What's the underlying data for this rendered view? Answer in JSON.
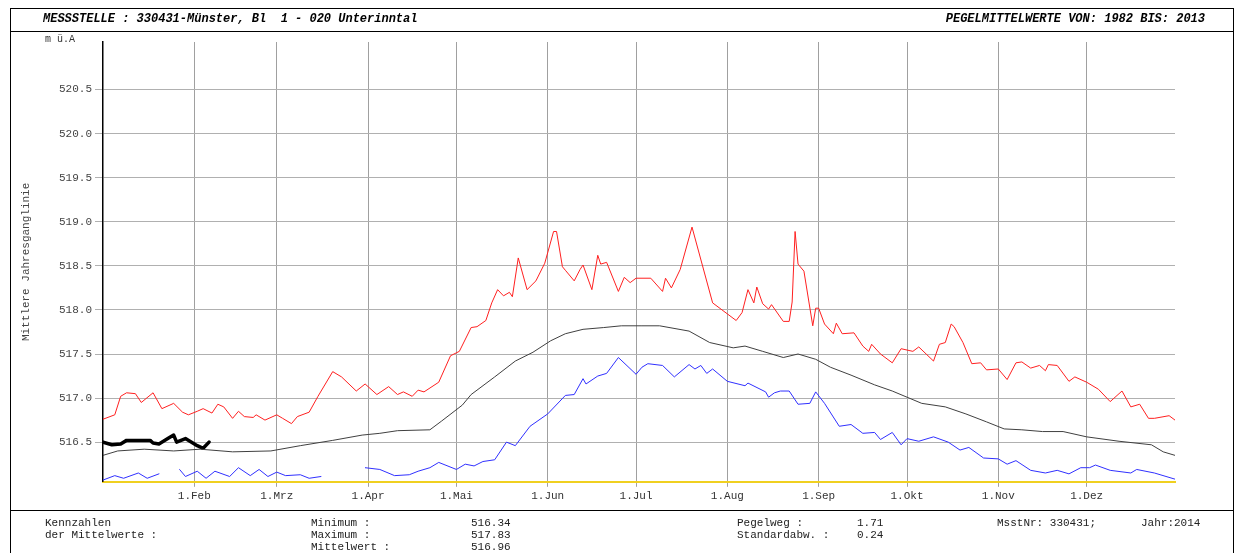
{
  "chart_data": {
    "type": "line",
    "title": "MESSSTELLE : 330431-Münster, Bl  1 - 020 Unterinntal",
    "subtitle": "PEGELMITTELWERTE VON: 1982 BIS: 2013",
    "ylabel": "Mittlere Jahresganglinie",
    "annotations": [
      "m ü.A",
      "Kennzahlen",
      "der Mittelwerte :",
      "Minimum :",
      "516.34",
      "Maximum :",
      "517.83",
      "Mittelwert :",
      "516.96",
      "Pegelweg :",
      "1.71",
      "Standardabw. :",
      "0.24",
      "MsstNr: 330431;",
      "Jahr:2014"
    ],
    "xlim": [
      "--01-01",
      "--12-31"
    ],
    "xticks": [
      {
        "value": "--02-01",
        "label": "1.Feb"
      },
      {
        "value": "--03-01",
        "label": "1.Mrz"
      },
      {
        "value": "--04-01",
        "label": "1.Apr"
      },
      {
        "value": "--05-01",
        "label": "1.Mai"
      },
      {
        "value": "--06-01",
        "label": "1.Jun"
      },
      {
        "value": "--07-01",
        "label": "1.Jul"
      },
      {
        "value": "--08-01",
        "label": "1.Aug"
      },
      {
        "value": "--09-01",
        "label": "1.Sep"
      },
      {
        "value": "--10-01",
        "label": "1.Okt"
      },
      {
        "value": "--11-01",
        "label": "1.Nov"
      },
      {
        "value": "--12-01",
        "label": "1.Dez"
      }
    ],
    "ylim": [
      516.05,
      521.04
    ],
    "yticks": [
      516.5,
      {
        "value": 517,
        "label": "517.0"
      },
      517.5,
      {
        "value": 518,
        "label": "518.0"
      },
      518.5,
      {
        "value": 519,
        "label": "519.0"
      },
      519.5,
      {
        "value": 520,
        "label": "520.0"
      },
      520.5
    ],
    "grid": true,
    "legend": false,
    "marker": "none",
    "line_style": "solid",
    "series": [
      {
        "color": "#ff2020",
        "x": [
          "--01-01",
          "--01-05",
          "--01-07",
          "--01-09",
          "--01-12",
          "--01-14",
          "--01-18",
          "--01-21",
          "--01-25",
          "--01-28",
          "--01-30",
          "--02-02",
          "--02-04",
          "--02-07",
          "--02-09",
          "--02-11",
          "--02-14",
          "--02-16",
          "--02-18",
          "--02-21",
          "--02-22",
          "--02-25",
          "--03-01",
          "--03-03",
          "--03-06",
          "--03-08",
          "--03-12",
          "--03-15",
          "--03-20",
          "--03-23",
          "--03-28",
          "--03-31",
          "--04-04",
          "--04-08",
          "--04-11",
          "--04-13",
          "--04-16",
          "--04-18",
          "--04-20",
          "--04-25",
          "--04-29",
          "--05-02",
          "--05-06",
          "--05-08",
          "--05-11",
          "--05-13",
          "--05-15",
          "--05-17",
          "--05-19",
          "--05-20",
          "--05-22",
          "--05-25",
          "--05-28",
          "--05-31",
          "--06-03",
          "--06-04",
          "--06-06",
          "--06-07",
          "--06-10",
          "--06-12",
          "--06-13",
          "--06-16",
          "--06-18",
          "--06-19",
          "--06-21",
          "--06-25",
          "--06-27",
          "--06-29",
          "--07-01",
          "--07-06",
          "--07-10",
          "--07-11",
          "--07-13",
          "--07-16",
          "--07-20",
          "--07-27",
          "--08-04",
          "--08-06",
          "--08-08",
          "--08-10",
          "--08-11",
          "--08-13",
          "--08-15",
          "--08-16",
          "--08-20",
          "--08-22",
          "--08-23",
          "--08-24",
          "--08-25",
          "--08-27",
          "--08-30",
          "--08-31",
          "--09-01",
          "--09-03",
          "--09-06",
          "--09-07",
          "--09-09",
          "--09-13",
          "--09-16",
          "--09-18",
          "--09-19",
          "--09-22",
          "--09-26",
          "--09-29",
          "--10-03",
          "--10-05",
          "--10-10",
          "--10-12",
          "--10-14",
          "--10-16",
          "--10-17",
          "--10-20",
          "--10-23",
          "--10-26",
          "--10-28",
          "--11-01",
          "--11-04",
          "--11-07",
          "--11-09",
          "--11-12",
          "--11-15",
          "--11-17",
          "--11-18",
          "--11-21",
          "--11-25",
          "--11-27",
          "--12-01",
          "--12-05",
          "--12-09",
          "--12-13",
          "--12-16",
          "--12-19",
          "--12-22",
          "--12-24",
          "--12-29",
          "--12-31"
        ],
        "values": [
          516.76,
          516.81,
          517.02,
          517.06,
          517.05,
          516.95,
          517.06,
          516.88,
          516.94,
          516.84,
          516.81,
          516.85,
          516.88,
          516.83,
          516.93,
          516.9,
          516.77,
          516.85,
          516.79,
          516.78,
          516.81,
          516.75,
          516.81,
          516.77,
          516.71,
          516.79,
          516.84,
          517.02,
          517.3,
          517.24,
          517.08,
          517.16,
          517.04,
          517.13,
          517.04,
          517.07,
          517.02,
          517.09,
          517.07,
          517.18,
          517.48,
          517.53,
          517.8,
          517.81,
          517.88,
          518.08,
          518.23,
          518.16,
          518.2,
          518.15,
          518.59,
          518.23,
          518.33,
          518.53,
          518.89,
          518.89,
          518.49,
          518.45,
          518.33,
          518.46,
          518.51,
          518.23,
          518.62,
          518.52,
          518.54,
          518.21,
          518.37,
          518.31,
          518.36,
          518.36,
          518.21,
          518.36,
          518.25,
          518.46,
          518.94,
          518.08,
          517.88,
          517.97,
          518.23,
          518.08,
          518.26,
          518.07,
          518.01,
          518.06,
          517.87,
          517.87,
          518.09,
          518.89,
          518.52,
          518.44,
          517.82,
          518.02,
          518.02,
          517.84,
          517.73,
          517.85,
          517.73,
          517.74,
          517.59,
          517.53,
          517.61,
          517.5,
          517.4,
          517.56,
          517.53,
          517.58,
          517.42,
          517.61,
          517.63,
          517.84,
          517.81,
          517.63,
          517.39,
          517.4,
          517.32,
          517.33,
          517.21,
          517.4,
          517.41,
          517.34,
          517.37,
          517.31,
          517.38,
          517.37,
          517.19,
          517.24,
          517.18,
          517.1,
          516.96,
          517.08,
          516.9,
          516.93,
          516.77,
          516.77,
          516.8,
          516.75
        ]
      },
      {
        "color": "#404040",
        "x": [
          "--01-01",
          "--01-06",
          "--01-15",
          "--01-25",
          "--02-03",
          "--02-14",
          "--02-27",
          "--03-09",
          "--03-20",
          "--03-30",
          "--04-05",
          "--04-11",
          "--04-22",
          "--04-26",
          "--05-03",
          "--05-06",
          "--05-14",
          "--05-21",
          "--05-27",
          "--06-02",
          "--06-07",
          "--06-13",
          "--06-20",
          "--06-26",
          "--07-03",
          "--07-09",
          "--07-19",
          "--07-26",
          "--08-03",
          "--08-07",
          "--08-13",
          "--08-20",
          "--08-25",
          "--08-31",
          "--09-05",
          "--09-12",
          "--09-20",
          "--09-26",
          "--10-01",
          "--10-06",
          "--10-14",
          "--10-21",
          "--10-28",
          "--11-03",
          "--11-09",
          "--11-16",
          "--11-23",
          "--12-01",
          "--12-12",
          "--12-23",
          "--12-27",
          "--12-31"
        ],
        "values": [
          516.35,
          516.4,
          516.42,
          516.4,
          516.42,
          516.39,
          516.4,
          516.46,
          516.52,
          516.58,
          516.6,
          516.63,
          516.64,
          516.74,
          516.92,
          517.04,
          517.24,
          517.42,
          517.52,
          517.65,
          517.73,
          517.78,
          517.8,
          517.82,
          517.82,
          517.82,
          517.76,
          517.63,
          517.57,
          517.59,
          517.53,
          517.46,
          517.5,
          517.44,
          517.35,
          517.26,
          517.15,
          517.08,
          517.01,
          516.94,
          516.9,
          516.82,
          516.73,
          516.65,
          516.64,
          516.62,
          516.62,
          516.56,
          516.51,
          516.47,
          516.39,
          516.35
        ]
      },
      {
        "color": "#3030ff",
        "x": [
          "--01-01",
          "--01-05",
          "--01-08",
          "--01-13",
          "--01-16",
          "--01-20",
          "--01-23",
          "--01-27",
          "--01-29",
          "--02-02",
          "--02-05",
          "--02-08",
          "--02-13",
          "--02-16",
          "--02-20",
          "--02-23",
          "--02-26",
          "--03-01",
          "--03-04",
          "--03-09",
          "--03-12",
          "--03-16",
          "--03-18",
          "--03-21",
          "--03-26",
          "--03-31",
          "--04-05",
          "--04-10",
          "--04-15",
          "--04-18",
          "--04-22",
          "--04-25",
          "--05-01",
          "--05-04",
          "--05-07",
          "--05-10",
          "--05-14",
          "--05-18",
          "--05-21",
          "--05-26",
          "--06-01",
          "--06-07",
          "--06-10",
          "--06-13",
          "--06-14",
          "--06-18",
          "--06-21",
          "--06-25",
          "--07-01",
          "--07-03",
          "--07-05",
          "--07-10",
          "--07-14",
          "--07-19",
          "--07-21",
          "--07-23",
          "--07-25",
          "--07-27",
          "--08-01",
          "--08-07",
          "--08-08",
          "--08-14",
          "--08-15",
          "--08-17",
          "--08-19",
          "--08-22",
          "--08-25",
          "--08-29",
          "--08-31",
          "--09-03",
          "--09-08",
          "--09-12",
          "--09-16",
          "--09-20",
          "--09-22",
          "--09-26",
          "--09-29",
          "--10-01",
          "--10-05",
          "--10-10",
          "--10-15",
          "--10-19",
          "--10-22",
          "--10-27",
          "--11-01",
          "--11-04",
          "--11-07",
          "--11-12",
          "--11-17",
          "--11-21",
          "--11-25",
          "--11-29",
          "--12-02",
          "--12-04",
          "--12-09",
          "--12-16",
          "--12-18",
          "--12-24",
          "--12-31"
        ],
        "values": [
          516.07,
          516.12,
          516.09,
          516.15,
          516.09,
          516.14,
          null,
          516.19,
          516.11,
          516.17,
          516.09,
          516.17,
          516.11,
          516.21,
          516.12,
          516.19,
          516.11,
          516.16,
          516.12,
          516.13,
          516.09,
          516.11,
          null,
          null,
          null,
          516.21,
          516.19,
          516.12,
          516.13,
          516.17,
          516.21,
          516.27,
          516.19,
          516.25,
          516.23,
          516.28,
          516.3,
          516.5,
          516.46,
          516.68,
          516.82,
          517.03,
          517.04,
          517.22,
          517.16,
          517.25,
          517.28,
          517.46,
          517.27,
          517.35,
          517.39,
          517.37,
          517.24,
          517.38,
          517.33,
          517.37,
          517.28,
          517.33,
          517.19,
          517.14,
          517.17,
          517.07,
          517.01,
          517.06,
          517.08,
          517.08,
          516.93,
          516.94,
          517.07,
          516.94,
          516.68,
          516.7,
          516.6,
          516.61,
          516.53,
          516.61,
          516.47,
          516.54,
          516.51,
          516.56,
          516.5,
          516.41,
          516.44,
          516.32,
          516.31,
          516.25,
          516.29,
          516.18,
          516.15,
          516.18,
          516.14,
          516.21,
          516.21,
          516.24,
          516.18,
          516.15,
          516.19,
          516.15,
          516.08
        ]
      },
      {
        "color": "#000000",
        "x": [
          "--01-01",
          "--01-04",
          "--01-07",
          "--01-09",
          "--01-17",
          "--01-18",
          "--01-20",
          "--01-23",
          "--01-25",
          "--01-26",
          "--01-29",
          "--02-02",
          "--02-04",
          "--02-06"
        ],
        "values": [
          516.5,
          516.47,
          516.48,
          516.52,
          516.52,
          516.49,
          516.48,
          516.54,
          516.58,
          516.5,
          516.54,
          516.46,
          516.43,
          516.5
        ]
      }
    ]
  }
}
